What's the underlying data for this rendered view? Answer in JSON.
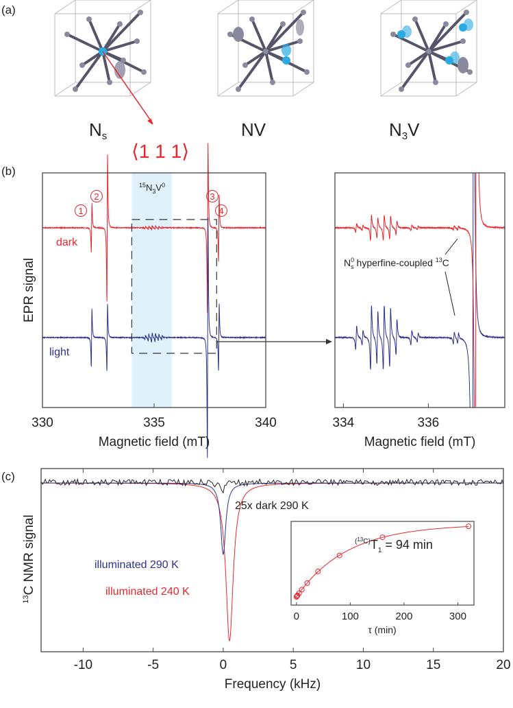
{
  "panel_labels": [
    "(a)",
    "(b)",
    "(c)"
  ],
  "structures": [
    {
      "label": "N",
      "sub": "s"
    },
    {
      "label": "NV",
      "sub": ""
    },
    {
      "label": "N",
      "sub": "3",
      "suffix": "V"
    }
  ],
  "direction_label": "⟨1 1 1⟩",
  "colors": {
    "dark": "#e8262b",
    "light": "#2e3192",
    "shade": "#dff2fb",
    "atom": "#8a8a9e",
    "nitrogen": "#29abe2",
    "bond": "#55556a"
  },
  "chart_data": [
    {
      "id": "b-left",
      "type": "line",
      "title": "",
      "xlabel": "Magnetic field (mT)",
      "ylabel": "EPR signal",
      "xlim": [
        330,
        340
      ],
      "xticks": [
        "330",
        "335",
        "340"
      ],
      "shaded_region": {
        "range": [
          334,
          335.8
        ],
        "label_sup": "15",
        "label_main": "N",
        "label_sub": "3",
        "label_end": "V",
        "label_end_sup": "0"
      },
      "peak_markers": [
        "1",
        "2",
        "3",
        "4"
      ],
      "peak_positions_mT": [
        332.2,
        332.9,
        337.4,
        337.9
      ],
      "series": [
        {
          "name": "dark",
          "color": "#e8262b"
        },
        {
          "name": "light",
          "color": "#2e3192"
        }
      ],
      "zoom_box_mT": [
        334,
        337.8
      ]
    },
    {
      "id": "b-right",
      "type": "line",
      "xlabel": "Magnetic field (mT)",
      "xlim": [
        333.8,
        337.8
      ],
      "xticks": [
        "334",
        "336"
      ],
      "annotation": {
        "main": "N",
        "sup": "0",
        "sub": "s",
        "text": " hyperfine-coupled ",
        "sup2": "13",
        "end": "C"
      },
      "series": [
        {
          "name": "dark",
          "color": "#e8262b"
        },
        {
          "name": "light",
          "color": "#2e3192"
        }
      ]
    },
    {
      "id": "c-main",
      "type": "line",
      "xlabel": "Frequency (kHz)",
      "ylabel_sup": "13",
      "ylabel": "C NMR signal",
      "xlim": [
        -13,
        20
      ],
      "xticks": [
        "-10",
        "-5",
        "0",
        "5",
        "10",
        "15",
        "20"
      ],
      "series": [
        {
          "name": "25x dark 290 K",
          "color": "#222222",
          "center_kHz": 0.0
        },
        {
          "name": "illuminated 290 K",
          "color": "#2e3192",
          "center_kHz": 0.0,
          "relative_depth": 0.45
        },
        {
          "name": "illuminated 240 K",
          "color": "#e8262b",
          "center_kHz": 0.45,
          "relative_depth": 1.0
        }
      ]
    },
    {
      "id": "c-inset",
      "type": "scatter",
      "xlabel": "τ (min)",
      "xlim": [
        -10,
        330
      ],
      "xticks": [
        "0",
        "100",
        "200",
        "300"
      ],
      "annotation": {
        "pre": "(",
        "sup": "13",
        "mid": "C)",
        "main": "T",
        "sub": "1",
        "text": " = 94 min"
      },
      "T1_min": 94,
      "points": {
        "x": [
          0,
          1,
          2,
          5,
          10,
          20,
          40,
          80,
          160,
          320
        ],
        "y": [
          0.0,
          0.01,
          0.02,
          0.05,
          0.1,
          0.19,
          0.35,
          0.57,
          0.82,
          0.97
        ]
      },
      "fit": "1-exp(-t/94)"
    }
  ]
}
